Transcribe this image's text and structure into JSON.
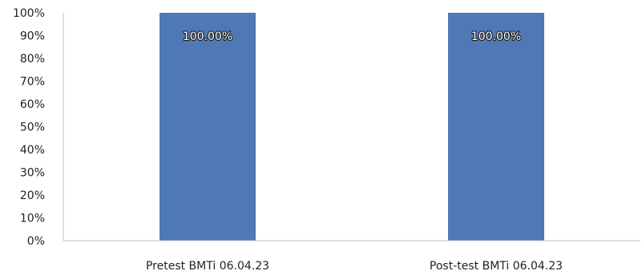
{
  "chart_data": {
    "type": "bar",
    "categories": [
      "Pretest BMTi 06.04.23",
      "Post-test BMTi 06.04.23"
    ],
    "series": [
      {
        "values": [
          100,
          100
        ],
        "data_labels": [
          "100.00%",
          "100.00%"
        ]
      }
    ],
    "ylim": [
      0,
      100
    ],
    "yticks": [
      "0%",
      "10%",
      "20%",
      "30%",
      "40%",
      "50%",
      "60%",
      "70%",
      "80%",
      "90%",
      "100%"
    ],
    "grid": false,
    "legend": "none",
    "colors": {
      "bar": "#4e79b4",
      "axis": "#bfbfbf"
    }
  }
}
